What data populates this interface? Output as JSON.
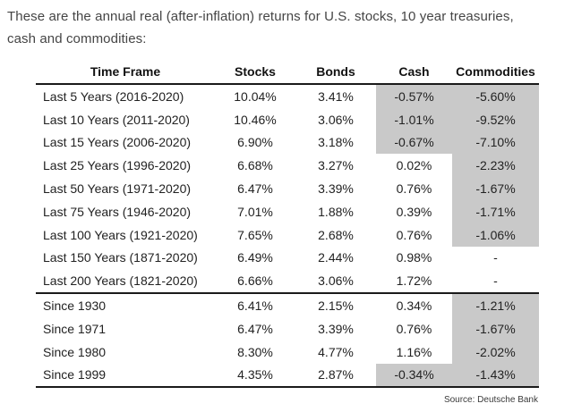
{
  "intro": {
    "line1": "These are the annual real (after-inflation) returns for U.S. stocks, 10 year treasuries,",
    "line2": "cash and commodities:"
  },
  "source_label": "Source: Deutsche Bank",
  "colors": {
    "highlight_gray": "#c9c9c9",
    "rule_black": "#1a1a1a",
    "intro_text": "#454545",
    "body_text": "#222222"
  },
  "chart_data": {
    "type": "table",
    "title": "These are the annual real (after-inflation) returns for U.S. stocks, 10 year treasuries, cash and commodities:",
    "columns": [
      "Time Frame",
      "Stocks",
      "Bonds",
      "Cash",
      "Commodities"
    ],
    "shading_note": "gray cells mark negative real returns",
    "source": "Source: Deutsche Bank",
    "rows": [
      {
        "label": "Last 5 Years (2016-2020)",
        "stocks": "10.04%",
        "bonds": "3.41%",
        "cash": "-0.57%",
        "commodities": "-5.60%",
        "cash_shaded": true,
        "commodities_shaded": true,
        "section_end": false
      },
      {
        "label": "Last 10 Years (2011-2020)",
        "stocks": "10.46%",
        "bonds": "3.06%",
        "cash": "-1.01%",
        "commodities": "-9.52%",
        "cash_shaded": true,
        "commodities_shaded": true,
        "section_end": false
      },
      {
        "label": "Last 15 Years (2006-2020)",
        "stocks": "6.90%",
        "bonds": "3.18%",
        "cash": "-0.67%",
        "commodities": "-7.10%",
        "cash_shaded": true,
        "commodities_shaded": true,
        "section_end": false
      },
      {
        "label": "Last 25 Years (1996-2020)",
        "stocks": "6.68%",
        "bonds": "3.27%",
        "cash": "0.02%",
        "commodities": "-2.23%",
        "cash_shaded": false,
        "commodities_shaded": true,
        "section_end": false
      },
      {
        "label": "Last 50 Years (1971-2020)",
        "stocks": "6.47%",
        "bonds": "3.39%",
        "cash": "0.76%",
        "commodities": "-1.67%",
        "cash_shaded": false,
        "commodities_shaded": true,
        "section_end": false
      },
      {
        "label": "Last 75 Years (1946-2020)",
        "stocks": "7.01%",
        "bonds": "1.88%",
        "cash": "0.39%",
        "commodities": "-1.71%",
        "cash_shaded": false,
        "commodities_shaded": true,
        "section_end": false
      },
      {
        "label": "Last 100 Years (1921-2020)",
        "stocks": "7.65%",
        "bonds": "2.68%",
        "cash": "0.76%",
        "commodities": "-1.06%",
        "cash_shaded": false,
        "commodities_shaded": true,
        "section_end": false
      },
      {
        "label": "Last 150 Years (1871-2020)",
        "stocks": "6.49%",
        "bonds": "2.44%",
        "cash": "0.98%",
        "commodities": "-",
        "cash_shaded": false,
        "commodities_shaded": false,
        "section_end": false
      },
      {
        "label": "Last 200 Years (1821-2020)",
        "stocks": "6.66%",
        "bonds": "3.06%",
        "cash": "1.72%",
        "commodities": "-",
        "cash_shaded": false,
        "commodities_shaded": false,
        "section_end": true
      },
      {
        "label": "Since 1930",
        "stocks": "6.41%",
        "bonds": "2.15%",
        "cash": "0.34%",
        "commodities": "-1.21%",
        "cash_shaded": false,
        "commodities_shaded": true,
        "section_end": false
      },
      {
        "label": "Since 1971",
        "stocks": "6.47%",
        "bonds": "3.39%",
        "cash": "0.76%",
        "commodities": "-1.67%",
        "cash_shaded": false,
        "commodities_shaded": true,
        "section_end": false
      },
      {
        "label": "Since 1980",
        "stocks": "8.30%",
        "bonds": "4.77%",
        "cash": "1.16%",
        "commodities": "-2.02%",
        "cash_shaded": false,
        "commodities_shaded": true,
        "section_end": false
      },
      {
        "label": "Since 1999",
        "stocks": "4.35%",
        "bonds": "2.87%",
        "cash": "-0.34%",
        "commodities": "-1.43%",
        "cash_shaded": true,
        "commodities_shaded": true,
        "section_end": true
      }
    ]
  }
}
